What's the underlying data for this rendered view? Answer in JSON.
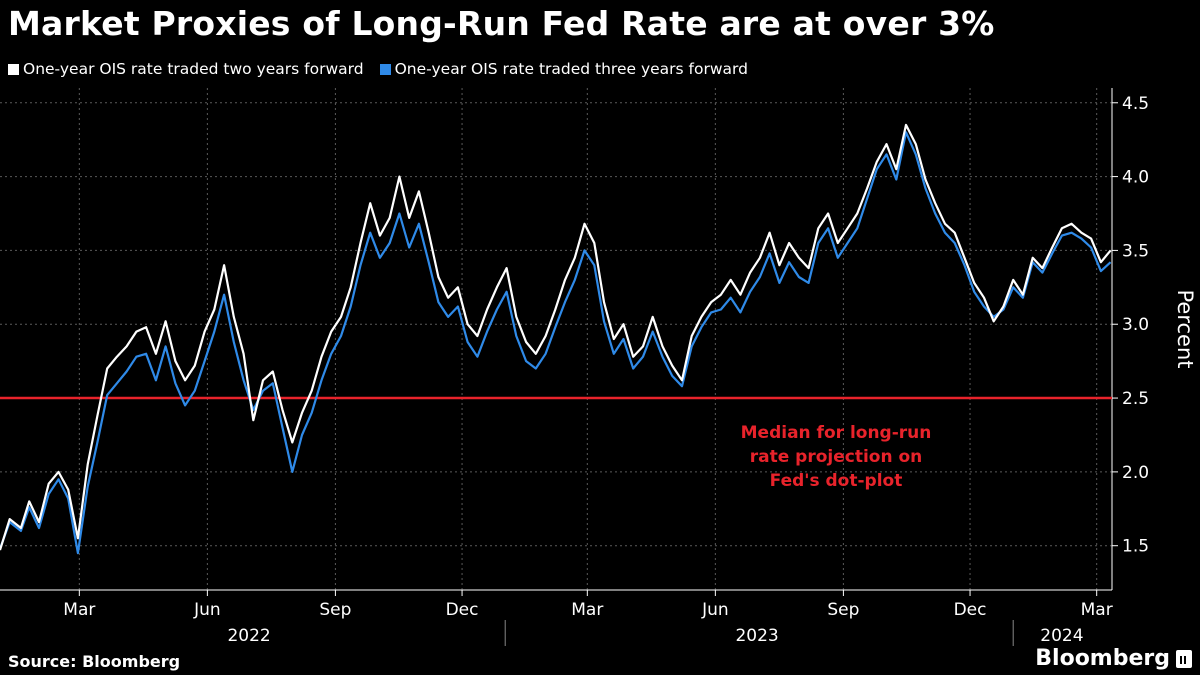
{
  "title": "Market Proxies of Long-Run Fed Rate are at over 3%",
  "source": "Source: Bloomberg",
  "brand": "Bloomberg",
  "colors": {
    "background": "#000000",
    "series_two_year": "#ffffff",
    "series_three_year": "#2f8ae8",
    "reference_line": "#e8232b",
    "grid": "#5a5a5a"
  },
  "chart_data": {
    "type": "line",
    "ylabel": "Percent",
    "ylim": [
      1.2,
      4.6
    ],
    "yticks": [
      1.5,
      2.0,
      2.5,
      3.0,
      3.5,
      4.0,
      4.5
    ],
    "ytick_labels": [
      "1.5",
      "2.0",
      "2.5",
      "3.0",
      "3.5",
      "4.0",
      "4.5"
    ],
    "xlim": [
      "2022-01-03",
      "2024-03-12"
    ],
    "xticks": [
      {
        "date": "2022-03-01",
        "label": "Mar"
      },
      {
        "date": "2022-06-01",
        "label": "Jun"
      },
      {
        "date": "2022-09-01",
        "label": "Sep"
      },
      {
        "date": "2022-12-01",
        "label": "Dec"
      },
      {
        "date": "2023-03-01",
        "label": "Mar"
      },
      {
        "date": "2023-06-01",
        "label": "Jun"
      },
      {
        "date": "2023-09-01",
        "label": "Sep"
      },
      {
        "date": "2023-12-01",
        "label": "Dec"
      },
      {
        "date": "2024-03-01",
        "label": "Mar"
      }
    ],
    "year_labels": [
      {
        "label": "2022",
        "center": "2022-07-01"
      },
      {
        "label": "2023",
        "center": "2023-07-01"
      },
      {
        "label": "2024",
        "center": "2024-02-05"
      }
    ],
    "year_separators": [
      "2023-01-01",
      "2024-01-01"
    ],
    "grid": true,
    "legend_position": "top-left",
    "reference_line": {
      "value": 2.5,
      "label_lines": [
        "Median for long-run",
        "rate projection on",
        "Fed's dot-plot"
      ]
    },
    "series": [
      {
        "name": "One-year OIS rate traded two years forward",
        "points": [
          [
            "2022-01-03",
            1.47
          ],
          [
            "2022-01-10",
            1.68
          ],
          [
            "2022-01-18",
            1.62
          ],
          [
            "2022-01-24",
            1.8
          ],
          [
            "2022-01-31",
            1.66
          ],
          [
            "2022-02-07",
            1.92
          ],
          [
            "2022-02-14",
            2.0
          ],
          [
            "2022-02-21",
            1.88
          ],
          [
            "2022-02-28",
            1.55
          ],
          [
            "2022-03-07",
            2.05
          ],
          [
            "2022-03-14",
            2.38
          ],
          [
            "2022-03-21",
            2.7
          ],
          [
            "2022-03-28",
            2.78
          ],
          [
            "2022-04-04",
            2.85
          ],
          [
            "2022-04-11",
            2.95
          ],
          [
            "2022-04-18",
            2.98
          ],
          [
            "2022-04-25",
            2.8
          ],
          [
            "2022-05-02",
            3.02
          ],
          [
            "2022-05-09",
            2.75
          ],
          [
            "2022-05-16",
            2.62
          ],
          [
            "2022-05-23",
            2.72
          ],
          [
            "2022-05-30",
            2.95
          ],
          [
            "2022-06-06",
            3.1
          ],
          [
            "2022-06-13",
            3.4
          ],
          [
            "2022-06-20",
            3.05
          ],
          [
            "2022-06-27",
            2.8
          ],
          [
            "2022-07-04",
            2.35
          ],
          [
            "2022-07-11",
            2.62
          ],
          [
            "2022-07-18",
            2.68
          ],
          [
            "2022-07-25",
            2.42
          ],
          [
            "2022-08-01",
            2.2
          ],
          [
            "2022-08-08",
            2.4
          ],
          [
            "2022-08-15",
            2.55
          ],
          [
            "2022-08-22",
            2.78
          ],
          [
            "2022-08-29",
            2.95
          ],
          [
            "2022-09-05",
            3.05
          ],
          [
            "2022-09-12",
            3.25
          ],
          [
            "2022-09-19",
            3.55
          ],
          [
            "2022-09-26",
            3.82
          ],
          [
            "2022-10-03",
            3.6
          ],
          [
            "2022-10-10",
            3.72
          ],
          [
            "2022-10-17",
            4.0
          ],
          [
            "2022-10-24",
            3.72
          ],
          [
            "2022-10-31",
            3.9
          ],
          [
            "2022-11-07",
            3.62
          ],
          [
            "2022-11-14",
            3.32
          ],
          [
            "2022-11-21",
            3.18
          ],
          [
            "2022-11-28",
            3.25
          ],
          [
            "2022-12-05",
            3.0
          ],
          [
            "2022-12-12",
            2.92
          ],
          [
            "2022-12-19",
            3.1
          ],
          [
            "2022-12-26",
            3.25
          ],
          [
            "2023-01-02",
            3.38
          ],
          [
            "2023-01-09",
            3.05
          ],
          [
            "2023-01-16",
            2.88
          ],
          [
            "2023-01-23",
            2.8
          ],
          [
            "2023-01-30",
            2.92
          ],
          [
            "2023-02-06",
            3.1
          ],
          [
            "2023-02-13",
            3.3
          ],
          [
            "2023-02-20",
            3.45
          ],
          [
            "2023-02-27",
            3.68
          ],
          [
            "2023-03-06",
            3.55
          ],
          [
            "2023-03-13",
            3.15
          ],
          [
            "2023-03-20",
            2.9
          ],
          [
            "2023-03-27",
            3.0
          ],
          [
            "2023-04-03",
            2.78
          ],
          [
            "2023-04-10",
            2.85
          ],
          [
            "2023-04-17",
            3.05
          ],
          [
            "2023-04-24",
            2.85
          ],
          [
            "2023-05-01",
            2.72
          ],
          [
            "2023-05-08",
            2.62
          ],
          [
            "2023-05-15",
            2.92
          ],
          [
            "2023-05-22",
            3.05
          ],
          [
            "2023-05-29",
            3.15
          ],
          [
            "2023-06-05",
            3.2
          ],
          [
            "2023-06-12",
            3.3
          ],
          [
            "2023-06-19",
            3.2
          ],
          [
            "2023-06-26",
            3.35
          ],
          [
            "2023-07-03",
            3.45
          ],
          [
            "2023-07-10",
            3.62
          ],
          [
            "2023-07-17",
            3.4
          ],
          [
            "2023-07-24",
            3.55
          ],
          [
            "2023-07-31",
            3.45
          ],
          [
            "2023-08-07",
            3.38
          ],
          [
            "2023-08-14",
            3.65
          ],
          [
            "2023-08-21",
            3.75
          ],
          [
            "2023-08-28",
            3.55
          ],
          [
            "2023-09-04",
            3.65
          ],
          [
            "2023-09-11",
            3.75
          ],
          [
            "2023-09-18",
            3.92
          ],
          [
            "2023-09-25",
            4.1
          ],
          [
            "2023-10-02",
            4.22
          ],
          [
            "2023-10-09",
            4.05
          ],
          [
            "2023-10-16",
            4.35
          ],
          [
            "2023-10-23",
            4.22
          ],
          [
            "2023-10-30",
            3.98
          ],
          [
            "2023-11-06",
            3.82
          ],
          [
            "2023-11-13",
            3.68
          ],
          [
            "2023-11-20",
            3.62
          ],
          [
            "2023-11-27",
            3.45
          ],
          [
            "2023-12-04",
            3.28
          ],
          [
            "2023-12-11",
            3.18
          ],
          [
            "2023-12-18",
            3.02
          ],
          [
            "2023-12-25",
            3.12
          ],
          [
            "2024-01-01",
            3.3
          ],
          [
            "2024-01-08",
            3.2
          ],
          [
            "2024-01-15",
            3.45
          ],
          [
            "2024-01-22",
            3.38
          ],
          [
            "2024-01-29",
            3.52
          ],
          [
            "2024-02-05",
            3.65
          ],
          [
            "2024-02-12",
            3.68
          ],
          [
            "2024-02-19",
            3.62
          ],
          [
            "2024-02-26",
            3.58
          ],
          [
            "2024-03-04",
            3.42
          ],
          [
            "2024-03-11",
            3.5
          ]
        ]
      },
      {
        "name": "One-year OIS rate traded three years forward",
        "points": [
          [
            "2022-01-03",
            1.48
          ],
          [
            "2022-01-10",
            1.66
          ],
          [
            "2022-01-18",
            1.6
          ],
          [
            "2022-01-24",
            1.76
          ],
          [
            "2022-01-31",
            1.62
          ],
          [
            "2022-02-07",
            1.85
          ],
          [
            "2022-02-14",
            1.95
          ],
          [
            "2022-02-21",
            1.82
          ],
          [
            "2022-02-28",
            1.45
          ],
          [
            "2022-03-07",
            1.9
          ],
          [
            "2022-03-14",
            2.2
          ],
          [
            "2022-03-21",
            2.52
          ],
          [
            "2022-03-28",
            2.6
          ],
          [
            "2022-04-04",
            2.68
          ],
          [
            "2022-04-11",
            2.78
          ],
          [
            "2022-04-18",
            2.8
          ],
          [
            "2022-04-25",
            2.62
          ],
          [
            "2022-05-02",
            2.85
          ],
          [
            "2022-05-09",
            2.6
          ],
          [
            "2022-05-16",
            2.45
          ],
          [
            "2022-05-23",
            2.55
          ],
          [
            "2022-05-30",
            2.75
          ],
          [
            "2022-06-06",
            2.95
          ],
          [
            "2022-06-13",
            3.2
          ],
          [
            "2022-06-20",
            2.88
          ],
          [
            "2022-06-27",
            2.62
          ],
          [
            "2022-07-04",
            2.42
          ],
          [
            "2022-07-11",
            2.55
          ],
          [
            "2022-07-18",
            2.6
          ],
          [
            "2022-07-25",
            2.3
          ],
          [
            "2022-08-01",
            2.0
          ],
          [
            "2022-08-08",
            2.25
          ],
          [
            "2022-08-15",
            2.4
          ],
          [
            "2022-08-22",
            2.62
          ],
          [
            "2022-08-29",
            2.8
          ],
          [
            "2022-09-05",
            2.92
          ],
          [
            "2022-09-12",
            3.12
          ],
          [
            "2022-09-19",
            3.4
          ],
          [
            "2022-09-26",
            3.62
          ],
          [
            "2022-10-03",
            3.45
          ],
          [
            "2022-10-10",
            3.55
          ],
          [
            "2022-10-17",
            3.75
          ],
          [
            "2022-10-24",
            3.52
          ],
          [
            "2022-10-31",
            3.68
          ],
          [
            "2022-11-07",
            3.42
          ],
          [
            "2022-11-14",
            3.15
          ],
          [
            "2022-11-21",
            3.05
          ],
          [
            "2022-11-28",
            3.12
          ],
          [
            "2022-12-05",
            2.88
          ],
          [
            "2022-12-12",
            2.78
          ],
          [
            "2022-12-19",
            2.95
          ],
          [
            "2022-12-26",
            3.1
          ],
          [
            "2023-01-02",
            3.22
          ],
          [
            "2023-01-09",
            2.92
          ],
          [
            "2023-01-16",
            2.75
          ],
          [
            "2023-01-23",
            2.7
          ],
          [
            "2023-01-30",
            2.8
          ],
          [
            "2023-02-06",
            2.98
          ],
          [
            "2023-02-13",
            3.15
          ],
          [
            "2023-02-20",
            3.3
          ],
          [
            "2023-02-27",
            3.5
          ],
          [
            "2023-03-06",
            3.4
          ],
          [
            "2023-03-13",
            3.02
          ],
          [
            "2023-03-20",
            2.8
          ],
          [
            "2023-03-27",
            2.9
          ],
          [
            "2023-04-03",
            2.7
          ],
          [
            "2023-04-10",
            2.78
          ],
          [
            "2023-04-17",
            2.95
          ],
          [
            "2023-04-24",
            2.78
          ],
          [
            "2023-05-01",
            2.65
          ],
          [
            "2023-05-08",
            2.58
          ],
          [
            "2023-05-15",
            2.85
          ],
          [
            "2023-05-22",
            2.98
          ],
          [
            "2023-05-29",
            3.08
          ],
          [
            "2023-06-05",
            3.1
          ],
          [
            "2023-06-12",
            3.18
          ],
          [
            "2023-06-19",
            3.08
          ],
          [
            "2023-06-26",
            3.22
          ],
          [
            "2023-07-03",
            3.32
          ],
          [
            "2023-07-10",
            3.48
          ],
          [
            "2023-07-17",
            3.28
          ],
          [
            "2023-07-24",
            3.42
          ],
          [
            "2023-07-31",
            3.32
          ],
          [
            "2023-08-07",
            3.28
          ],
          [
            "2023-08-14",
            3.55
          ],
          [
            "2023-08-21",
            3.65
          ],
          [
            "2023-08-28",
            3.45
          ],
          [
            "2023-09-04",
            3.55
          ],
          [
            "2023-09-11",
            3.65
          ],
          [
            "2023-09-18",
            3.85
          ],
          [
            "2023-09-25",
            4.05
          ],
          [
            "2023-10-02",
            4.15
          ],
          [
            "2023-10-09",
            3.98
          ],
          [
            "2023-10-16",
            4.3
          ],
          [
            "2023-10-23",
            4.15
          ],
          [
            "2023-10-30",
            3.92
          ],
          [
            "2023-11-06",
            3.75
          ],
          [
            "2023-11-13",
            3.62
          ],
          [
            "2023-11-20",
            3.55
          ],
          [
            "2023-11-27",
            3.4
          ],
          [
            "2023-12-04",
            3.22
          ],
          [
            "2023-12-11",
            3.12
          ],
          [
            "2023-12-18",
            3.05
          ],
          [
            "2023-12-25",
            3.1
          ],
          [
            "2024-01-01",
            3.25
          ],
          [
            "2024-01-08",
            3.18
          ],
          [
            "2024-01-15",
            3.42
          ],
          [
            "2024-01-22",
            3.35
          ],
          [
            "2024-01-29",
            3.48
          ],
          [
            "2024-02-05",
            3.6
          ],
          [
            "2024-02-12",
            3.62
          ],
          [
            "2024-02-19",
            3.58
          ],
          [
            "2024-02-26",
            3.52
          ],
          [
            "2024-03-04",
            3.36
          ],
          [
            "2024-03-11",
            3.42
          ]
        ]
      }
    ]
  }
}
